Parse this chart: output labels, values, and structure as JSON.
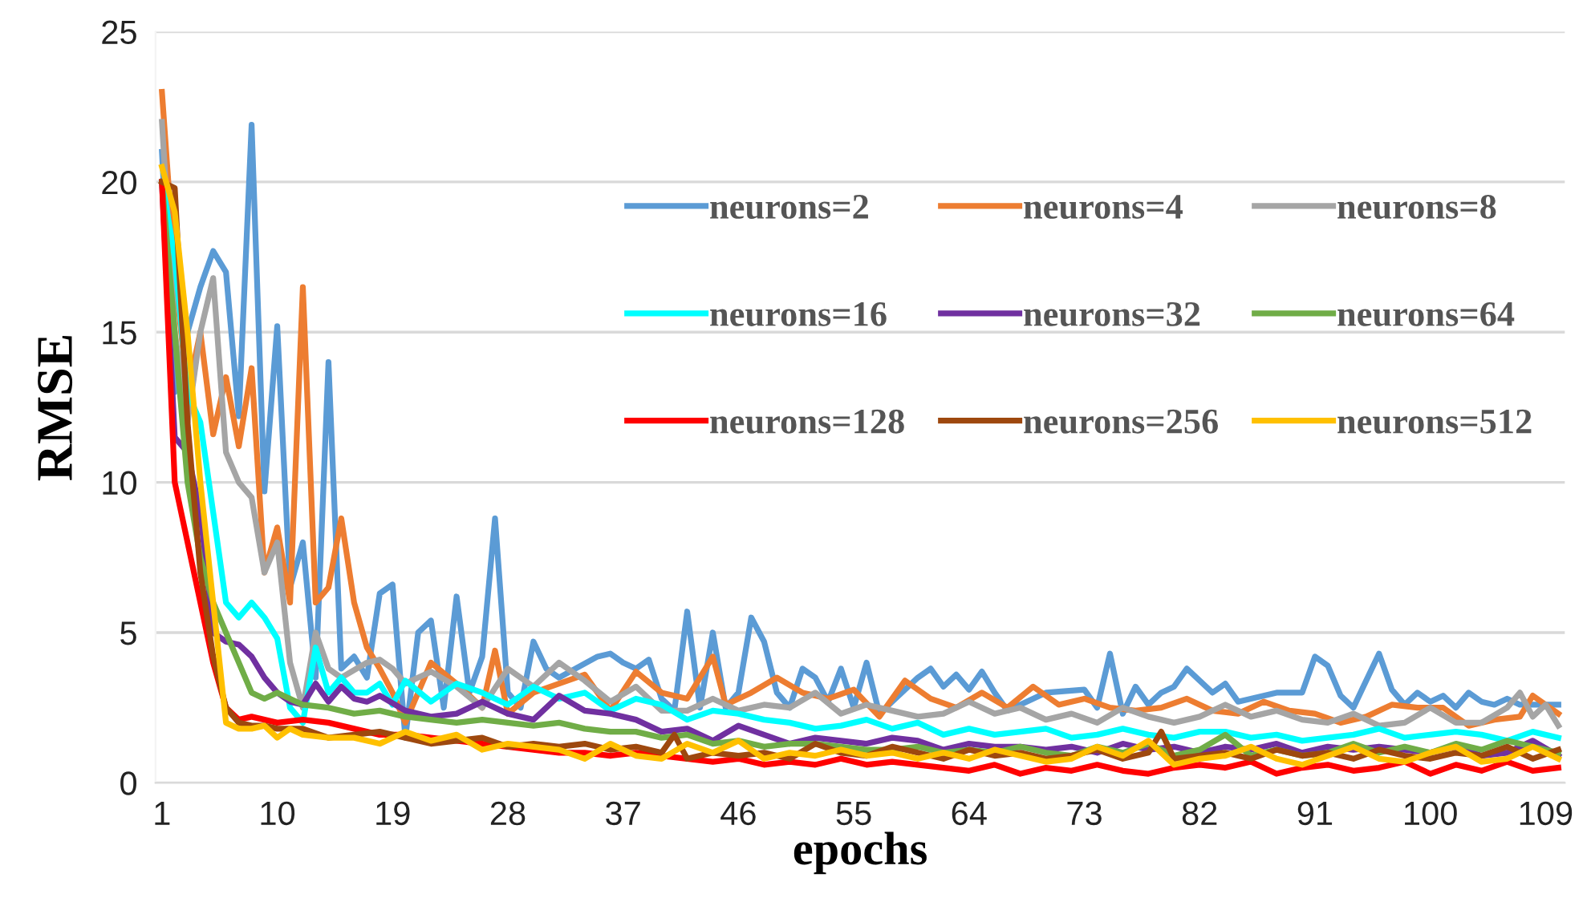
{
  "chart_data": {
    "type": "line",
    "xlabel": "epochs",
    "ylabel": "RMSE",
    "xlim": [
      0.5,
      110.5
    ],
    "xticks": [
      1,
      10,
      19,
      28,
      37,
      46,
      55,
      64,
      73,
      82,
      91,
      100,
      109
    ],
    "ylim": [
      0,
      25
    ],
    "yticks": [
      0,
      5,
      10,
      15,
      20,
      25
    ],
    "grid": "y",
    "legend": "right",
    "marker": "none",
    "line_style": "solid",
    "series": [
      {
        "name": "neurons=2",
        "color": "#5b9bd5",
        "x": [
          1,
          2,
          3,
          4,
          5,
          6,
          7,
          8,
          9,
          10,
          11,
          12,
          13,
          14,
          15,
          16,
          17,
          18,
          19,
          20,
          21,
          22,
          23,
          24,
          25,
          26,
          27,
          28,
          29,
          30,
          31,
          32,
          35,
          36,
          37,
          38,
          39,
          40,
          41,
          42,
          43,
          44,
          45,
          46,
          47,
          48,
          49,
          50,
          51,
          52,
          53,
          54,
          55,
          56,
          57,
          60,
          61,
          62,
          63,
          64,
          65,
          66,
          67,
          70,
          73,
          74,
          75,
          76,
          77,
          78,
          79,
          80,
          81,
          82,
          83,
          84,
          85,
          88,
          90,
          91,
          92,
          93,
          94,
          95,
          96,
          97,
          98,
          99,
          100,
          101,
          102,
          103,
          104,
          105,
          106,
          107,
          108,
          110
        ],
        "values": [
          21,
          13,
          15,
          16.5,
          17.7,
          17,
          12.2,
          21.9,
          9.7,
          15.2,
          6.5,
          8,
          3.5,
          14,
          3.8,
          4.2,
          3.5,
          6.3,
          6.6,
          1.5,
          5,
          5.4,
          2.5,
          6.2,
          3,
          4.2,
          8.8,
          3,
          2.5,
          4.7,
          3.8,
          3.5,
          4.2,
          4.3,
          4,
          3.8,
          4.1,
          2.8,
          2.4,
          5.7,
          2.5,
          5,
          2.5,
          3,
          5.5,
          4.7,
          3,
          2.5,
          3.8,
          3.5,
          2.7,
          3.8,
          2.5,
          4,
          2.3,
          3.5,
          3.8,
          3.2,
          3.6,
          3.1,
          3.7,
          3,
          2.4,
          3,
          3.1,
          2.5,
          4.3,
          2.3,
          3.2,
          2.6,
          3,
          3.2,
          3.8,
          3.4,
          3,
          3.3,
          2.7,
          3,
          3,
          4.2,
          3.9,
          2.9,
          2.5,
          3.4,
          4.3,
          3.1,
          2.6,
          3,
          2.7,
          2.9,
          2.5,
          3,
          2.7,
          2.6,
          2.8,
          2.6,
          2.6,
          2.6
        ]
      },
      {
        "name": "neurons=4",
        "color": "#ed7d31",
        "x": [
          1,
          2,
          3,
          4,
          5,
          6,
          7,
          8,
          9,
          10,
          11,
          12,
          13,
          14,
          15,
          16,
          17,
          18,
          19,
          20,
          22,
          24,
          26,
          27,
          28,
          30,
          32,
          34,
          36,
          38,
          40,
          42,
          44,
          45,
          47,
          49,
          51,
          53,
          55,
          57,
          59,
          61,
          63,
          65,
          67,
          69,
          71,
          73,
          75,
          77,
          79,
          81,
          83,
          85,
          87,
          89,
          91,
          93,
          95,
          97,
          99,
          101,
          103,
          105,
          107,
          108,
          110
        ],
        "values": [
          23,
          17,
          13,
          15,
          11.6,
          13.5,
          11.2,
          13.8,
          7,
          8.5,
          6,
          16.5,
          6,
          6.5,
          8.8,
          6,
          4.5,
          3.8,
          3,
          2,
          4,
          3.3,
          2.5,
          4.4,
          2.3,
          3,
          3.3,
          3.6,
          2.4,
          3.7,
          3,
          2.8,
          4.2,
          2.6,
          3,
          3.5,
          3,
          2.8,
          3.1,
          2.2,
          3.4,
          2.8,
          2.5,
          3,
          2.5,
          3.2,
          2.6,
          2.8,
          2.5,
          2.4,
          2.5,
          2.8,
          2.4,
          2.3,
          2.7,
          2.4,
          2.3,
          2,
          2.2,
          2.6,
          2.5,
          2.5,
          1.9,
          2.1,
          2.2,
          2.9,
          2.3
        ]
      },
      {
        "name": "neurons=8",
        "color": "#a5a5a5",
        "x": [
          1,
          2,
          3,
          4,
          5,
          6,
          7,
          8,
          9,
          10,
          11,
          12,
          13,
          14,
          15,
          17,
          18,
          19,
          20,
          22,
          24,
          26,
          28,
          30,
          32,
          34,
          36,
          38,
          40,
          42,
          44,
          46,
          48,
          50,
          52,
          54,
          56,
          58,
          60,
          62,
          64,
          66,
          68,
          70,
          72,
          74,
          76,
          78,
          80,
          82,
          84,
          86,
          88,
          90,
          92,
          94,
          96,
          98,
          100,
          102,
          104,
          106,
          107,
          108,
          109,
          110
        ],
        "values": [
          22,
          15,
          12,
          15,
          16.8,
          11,
          10,
          9.5,
          7,
          8,
          4,
          2.5,
          5,
          3.8,
          3.5,
          4,
          4.1,
          3.8,
          3.3,
          3.7,
          3.2,
          2.5,
          3.8,
          3.2,
          4,
          3.4,
          2.7,
          3.2,
          2.4,
          2.4,
          2.8,
          2.4,
          2.6,
          2.5,
          3,
          2.3,
          2.6,
          2.4,
          2.2,
          2.3,
          2.7,
          2.3,
          2.5,
          2.1,
          2.3,
          2,
          2.5,
          2.2,
          2,
          2.2,
          2.6,
          2.2,
          2.4,
          2.1,
          2,
          2.3,
          1.9,
          2,
          2.5,
          2,
          2,
          2.5,
          3,
          2.2,
          2.6,
          1.9
        ]
      },
      {
        "name": "neurons=16",
        "color": "#00ffff",
        "x": [
          1,
          2,
          3,
          4,
          5,
          6,
          7,
          8,
          9,
          10,
          11,
          12,
          13,
          14,
          15,
          16,
          17,
          18,
          19,
          20,
          22,
          24,
          26,
          28,
          30,
          32,
          34,
          36,
          38,
          40,
          42,
          44,
          46,
          48,
          50,
          52,
          54,
          56,
          58,
          60,
          62,
          64,
          66,
          68,
          70,
          72,
          74,
          76,
          78,
          80,
          82,
          84,
          86,
          88,
          90,
          92,
          94,
          96,
          98,
          100,
          102,
          104,
          106,
          108,
          110
        ],
        "values": [
          20,
          17.5,
          13,
          12,
          9,
          6,
          5.5,
          6,
          5.5,
          4.8,
          2.5,
          2,
          4.5,
          3,
          3.5,
          3,
          3,
          3.3,
          2.6,
          3.4,
          2.7,
          3.3,
          3,
          2.6,
          3.2,
          2.8,
          3,
          2.4,
          2.8,
          2.6,
          2.1,
          2.4,
          2.3,
          2.1,
          2,
          1.8,
          1.9,
          2.1,
          1.8,
          2,
          1.6,
          1.8,
          1.6,
          1.7,
          1.8,
          1.5,
          1.6,
          1.8,
          1.6,
          1.5,
          1.7,
          1.7,
          1.5,
          1.6,
          1.4,
          1.5,
          1.6,
          1.8,
          1.5,
          1.6,
          1.7,
          1.6,
          1.4,
          1.7,
          1.5
        ]
      },
      {
        "name": "neurons=32",
        "color": "#7030a0",
        "x": [
          1,
          2,
          3,
          4,
          5,
          6,
          7,
          8,
          9,
          10,
          11,
          12,
          13,
          14,
          15,
          16,
          17,
          18,
          20,
          22,
          24,
          26,
          28,
          30,
          32,
          34,
          36,
          38,
          40,
          42,
          44,
          46,
          48,
          50,
          52,
          54,
          56,
          58,
          60,
          62,
          64,
          66,
          68,
          70,
          72,
          74,
          76,
          78,
          80,
          82,
          84,
          86,
          88,
          90,
          92,
          94,
          96,
          98,
          100,
          102,
          104,
          106,
          108,
          110
        ],
        "values": [
          20,
          11.5,
          11,
          9,
          5,
          4.7,
          4.6,
          4.2,
          3.5,
          3,
          2.7,
          2.6,
          3.3,
          2.7,
          3.2,
          2.8,
          2.7,
          2.9,
          2.4,
          2.2,
          2.3,
          2.7,
          2.3,
          2.1,
          2.9,
          2.4,
          2.3,
          2.1,
          1.7,
          1.8,
          1.4,
          1.9,
          1.6,
          1.3,
          1.5,
          1.4,
          1.3,
          1.5,
          1.4,
          1.1,
          1.3,
          1.2,
          1.2,
          1.1,
          1.2,
          1,
          1.3,
          1.1,
          1.2,
          1,
          1.2,
          1.1,
          1.3,
          1,
          1.2,
          1.1,
          1.2,
          1.1,
          1,
          1.2,
          0.9,
          1,
          1.4,
          0.9
        ]
      },
      {
        "name": "neurons=64",
        "color": "#70ad47",
        "x": [
          1,
          2,
          3,
          4,
          5,
          6,
          7,
          8,
          9,
          10,
          12,
          14,
          16,
          18,
          20,
          22,
          24,
          26,
          28,
          30,
          32,
          34,
          36,
          38,
          40,
          42,
          44,
          46,
          48,
          50,
          52,
          54,
          56,
          58,
          60,
          62,
          64,
          66,
          68,
          70,
          72,
          74,
          76,
          78,
          80,
          82,
          84,
          86,
          88,
          90,
          92,
          94,
          96,
          98,
          100,
          102,
          104,
          106,
          108,
          110
        ],
        "values": [
          20,
          15,
          10,
          7.5,
          6,
          5,
          4,
          3,
          2.8,
          3,
          2.6,
          2.5,
          2.3,
          2.4,
          2.2,
          2.1,
          2,
          2.1,
          2,
          1.9,
          2,
          1.8,
          1.7,
          1.7,
          1.5,
          1.6,
          1.3,
          1.4,
          1.2,
          1.3,
          1.3,
          1.2,
          1.1,
          1.1,
          1.2,
          1,
          1.1,
          1,
          1.2,
          1,
          0.9,
          1.2,
          1,
          1.3,
          0.9,
          1.1,
          1.6,
          0.9,
          1.1,
          0.9,
          1,
          1.3,
          1,
          1.2,
          1,
          1.3,
          1.1,
          1.4,
          1.2,
          1
        ]
      },
      {
        "name": "neurons=128",
        "color": "#ff0000",
        "x": [
          1,
          2,
          3,
          4,
          5,
          6,
          7,
          8,
          9,
          10,
          12,
          14,
          16,
          18,
          20,
          22,
          24,
          26,
          28,
          30,
          32,
          34,
          36,
          38,
          40,
          42,
          44,
          46,
          48,
          50,
          52,
          54,
          56,
          58,
          60,
          62,
          64,
          66,
          68,
          70,
          72,
          74,
          76,
          78,
          80,
          82,
          84,
          86,
          88,
          90,
          92,
          94,
          96,
          98,
          100,
          102,
          104,
          106,
          108,
          110
        ],
        "values": [
          20,
          10,
          8,
          6,
          4,
          2.5,
          2.1,
          2.2,
          2.1,
          2,
          2.1,
          2,
          1.8,
          1.6,
          1.6,
          1.5,
          1.4,
          1.3,
          1.2,
          1.1,
          1,
          1,
          0.9,
          1,
          0.9,
          0.8,
          0.7,
          0.8,
          0.6,
          0.7,
          0.6,
          0.8,
          0.6,
          0.7,
          0.6,
          0.5,
          0.4,
          0.6,
          0.3,
          0.5,
          0.4,
          0.6,
          0.4,
          0.3,
          0.5,
          0.6,
          0.5,
          0.7,
          0.3,
          0.5,
          0.6,
          0.4,
          0.5,
          0.7,
          0.3,
          0.6,
          0.4,
          0.7,
          0.4,
          0.5
        ]
      },
      {
        "name": "neurons=256",
        "color": "#9e480e",
        "x": [
          1,
          2,
          3,
          4,
          5,
          6,
          7,
          8,
          9,
          10,
          12,
          14,
          16,
          18,
          20,
          22,
          24,
          26,
          28,
          30,
          32,
          34,
          36,
          38,
          40,
          41,
          42,
          44,
          46,
          48,
          50,
          52,
          54,
          56,
          58,
          60,
          62,
          64,
          66,
          68,
          70,
          72,
          74,
          76,
          78,
          79,
          80,
          82,
          84,
          86,
          88,
          90,
          92,
          94,
          96,
          98,
          100,
          102,
          104,
          106,
          108,
          110
        ],
        "values": [
          20,
          19.8,
          12,
          7,
          4.2,
          2.5,
          2,
          1.9,
          1.9,
          1.8,
          1.8,
          1.5,
          1.6,
          1.7,
          1.5,
          1.3,
          1.4,
          1.5,
          1.2,
          1.3,
          1.2,
          1.3,
          1.1,
          1.2,
          1,
          1.6,
          0.8,
          1,
          0.9,
          1,
          0.8,
          1.3,
          1,
          0.9,
          1.2,
          1,
          0.8,
          1.1,
          0.9,
          1,
          0.8,
          0.9,
          1.1,
          0.8,
          1,
          1.7,
          0.8,
          0.9,
          1,
          0.8,
          1.1,
          0.9,
          1,
          0.8,
          1.1,
          0.9,
          0.8,
          1,
          0.9,
          1.2,
          0.8,
          1.1
        ]
      },
      {
        "name": "neurons=512",
        "color": "#ffc000",
        "x": [
          1,
          2,
          3,
          4,
          5,
          6,
          7,
          8,
          9,
          10,
          11,
          12,
          14,
          16,
          18,
          20,
          22,
          24,
          26,
          28,
          30,
          32,
          34,
          36,
          38,
          40,
          42,
          44,
          46,
          48,
          50,
          52,
          54,
          56,
          58,
          60,
          62,
          64,
          66,
          68,
          70,
          72,
          74,
          76,
          78,
          80,
          82,
          84,
          86,
          88,
          90,
          92,
          94,
          96,
          98,
          100,
          102,
          104,
          106,
          108,
          110
        ],
        "values": [
          20.5,
          19,
          15,
          10,
          6,
          2,
          1.8,
          1.8,
          1.9,
          1.5,
          1.8,
          1.6,
          1.5,
          1.5,
          1.3,
          1.7,
          1.4,
          1.6,
          1.1,
          1.3,
          1.2,
          1.1,
          0.8,
          1.3,
          0.9,
          0.8,
          1.3,
          1,
          1.4,
          0.8,
          1,
          0.9,
          1.1,
          0.9,
          1,
          0.8,
          1,
          0.8,
          1.1,
          0.9,
          0.7,
          0.8,
          1.2,
          0.9,
          1.4,
          0.6,
          0.8,
          0.9,
          1.2,
          0.8,
          0.6,
          0.9,
          1.2,
          0.8,
          0.7,
          1,
          1.2,
          0.7,
          0.8,
          1.2,
          0.8
        ]
      }
    ]
  }
}
